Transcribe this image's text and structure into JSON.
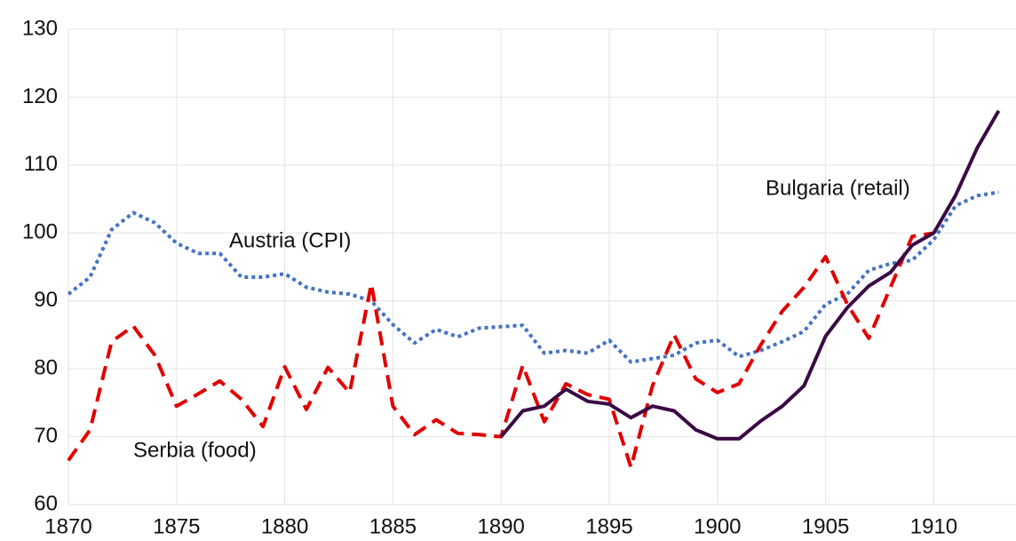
{
  "chart_data": {
    "type": "line",
    "x": [
      1870,
      1871,
      1872,
      1873,
      1874,
      1875,
      1876,
      1877,
      1878,
      1879,
      1880,
      1881,
      1882,
      1883,
      1884,
      1885,
      1886,
      1887,
      1888,
      1889,
      1890,
      1891,
      1892,
      1893,
      1894,
      1895,
      1896,
      1897,
      1898,
      1899,
      1900,
      1901,
      1902,
      1903,
      1904,
      1905,
      1906,
      1907,
      1908,
      1909,
      1910,
      1911,
      1912,
      1913
    ],
    "series": [
      {
        "name": "Austria (CPI)",
        "color": "#4472c4",
        "style": "dotted",
        "values": [
          91,
          93.5,
          100.5,
          103,
          101.5,
          98.5,
          97,
          97,
          93.5,
          93.5,
          94,
          92,
          91.3,
          91,
          90,
          86.5,
          83.8,
          85.8,
          84.7,
          86,
          86.2,
          86.4,
          82.3,
          82.7,
          82.3,
          84.2,
          81,
          81.5,
          82,
          83.8,
          84.2,
          81.8,
          82.7,
          84,
          85.5,
          89.5,
          91,
          94.5,
          95.5,
          96,
          99,
          104,
          105.5,
          106
        ]
      },
      {
        "name": "Serbia (food)",
        "color": "#e00000",
        "style": "dashed",
        "values": [
          66.5,
          71,
          84,
          86.3,
          82,
          74.5,
          76.3,
          78.2,
          75.5,
          71.5,
          80.3,
          74,
          80.2,
          76.5,
          92.5,
          74.5,
          70.3,
          72.5,
          70.5,
          70.3,
          70,
          80.5,
          72.2,
          77.8,
          76.2,
          75.5,
          65.5,
          77.5,
          85,
          78.5,
          76.5,
          77.8,
          83.5,
          88.5,
          92,
          96.5,
          89.5,
          84.5,
          92,
          99.5,
          100,
          null,
          null,
          null
        ]
      },
      {
        "name": "Bulgaria (retail)",
        "color": "#3b0a45",
        "style": "solid",
        "values": [
          null,
          null,
          null,
          null,
          null,
          null,
          null,
          null,
          null,
          null,
          null,
          null,
          null,
          null,
          null,
          null,
          null,
          null,
          null,
          null,
          70,
          73.8,
          74.5,
          77,
          75.2,
          74.8,
          72.8,
          74.5,
          73.8,
          71,
          69.7,
          69.7,
          72.3,
          74.5,
          77.5,
          84.8,
          89,
          92.2,
          94.2,
          98.2,
          100,
          105.5,
          112.5,
          118
        ]
      }
    ],
    "xlim": [
      1870,
      1913.8
    ],
    "ylim": [
      60,
      130
    ],
    "xticks": [
      1870,
      1875,
      1880,
      1885,
      1890,
      1895,
      1900,
      1905,
      1910
    ],
    "yticks": [
      60,
      70,
      80,
      90,
      100,
      110,
      120,
      130
    ],
    "grid": true
  }
}
